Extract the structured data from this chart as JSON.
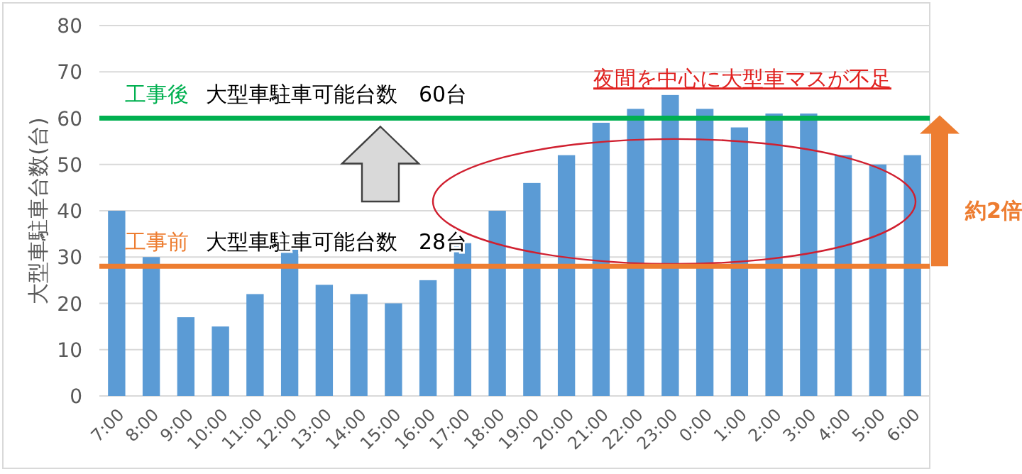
{
  "chart_data": {
    "type": "bar",
    "ylabel": "大型車駐車台数(台)",
    "categories": [
      "7:00",
      "8:00",
      "9:00",
      "10:00",
      "11:00",
      "12:00",
      "13:00",
      "14:00",
      "15:00",
      "16:00",
      "17:00",
      "18:00",
      "19:00",
      "20:00",
      "21:00",
      "22:00",
      "23:00",
      "0:00",
      "1:00",
      "2:00",
      "3:00",
      "4:00",
      "5:00",
      "6:00"
    ],
    "values": [
      40,
      30,
      17,
      15,
      22,
      32,
      24,
      22,
      20,
      25,
      33,
      40,
      46,
      52,
      59,
      62,
      65,
      62,
      58,
      61,
      61,
      52,
      50,
      52
    ],
    "color": "#5b9bd5",
    "ylim": [
      0,
      80
    ],
    "yticks": [
      0,
      10,
      20,
      30,
      40,
      50,
      60,
      70,
      80
    ],
    "grid": "y",
    "ref_lines": [
      {
        "axis": "y",
        "value": 60,
        "label": "工事後",
        "color": "#00b050"
      },
      {
        "axis": "y",
        "value": 28,
        "label": "工事前",
        "color": "#ed7d31"
      }
    ],
    "annotations": [
      "大型車駐車可能台数　60台",
      "大型車駐車可能台数　28台",
      "夜間を中心に大型車マスが不足",
      "約2倍"
    ]
  }
}
